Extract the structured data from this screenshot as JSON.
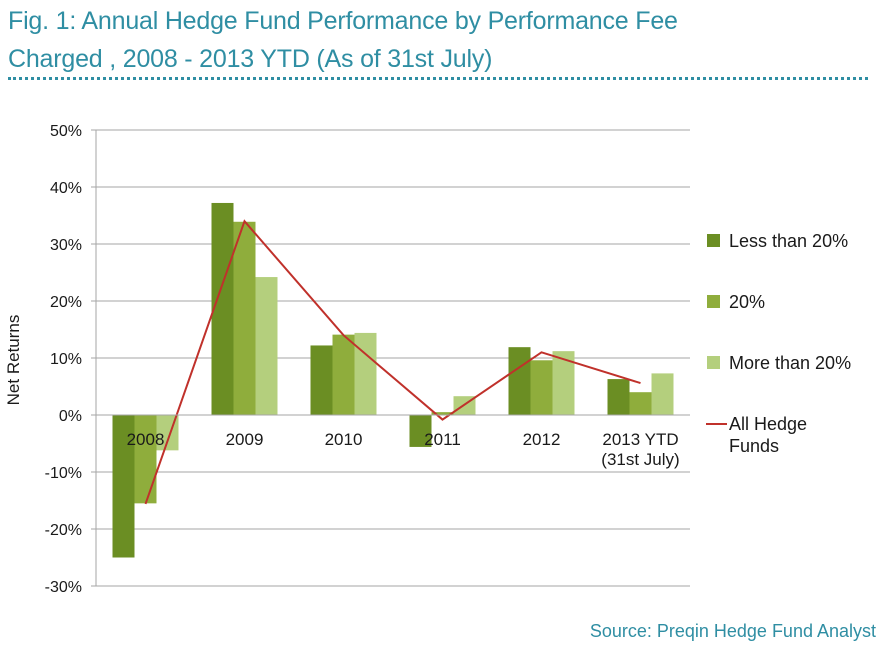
{
  "figure": {
    "title_line1": "Fig. 1: Annual Hedge Fund Performance by Performance Fee",
    "title_line2": "Charged , 2008 - 2013 YTD (As of 31st July)",
    "source": "Source: Preqin Hedge Fund Analyst"
  },
  "colors": {
    "title": "#2f8ea3",
    "less_than_20": "#6b8e23",
    "twenty": "#8fad3c",
    "more_than_20": "#b4cf7d",
    "all_funds_line": "#c0312b",
    "grid": "#a6a6a6"
  },
  "chart_data": {
    "type": "bar",
    "ylabel": "Net Returns",
    "ylim": [
      -30,
      50
    ],
    "yticks": [
      "50%",
      "40%",
      "30%",
      "20%",
      "10%",
      "0%",
      "-10%",
      "-20%",
      "-30%"
    ],
    "ytick_values": [
      50,
      40,
      30,
      20,
      10,
      0,
      -10,
      -20,
      -30
    ],
    "grid": true,
    "legend_position": "right",
    "categories": [
      [
        "2008"
      ],
      [
        "2009"
      ],
      [
        "2010"
      ],
      [
        "2011"
      ],
      [
        "2012"
      ],
      [
        "2013 YTD",
        "(31st July)"
      ]
    ],
    "series": [
      {
        "name": "Less than 20%",
        "kind": "bar",
        "values": [
          -25.0,
          37.2,
          12.2,
          -5.6,
          11.9,
          6.3
        ]
      },
      {
        "name": "20%",
        "kind": "bar",
        "values": [
          -15.5,
          33.9,
          14.1,
          0.5,
          9.6,
          4.0
        ]
      },
      {
        "name": "More than 20%",
        "kind": "bar",
        "values": [
          -6.2,
          24.2,
          14.4,
          3.3,
          11.2,
          7.3
        ]
      },
      {
        "name": "All Hedge Funds",
        "label_lines": [
          "All Hedge",
          "Funds"
        ],
        "kind": "line",
        "values": [
          -15.6,
          34.0,
          14.0,
          -0.8,
          11.0,
          5.6
        ]
      }
    ]
  }
}
